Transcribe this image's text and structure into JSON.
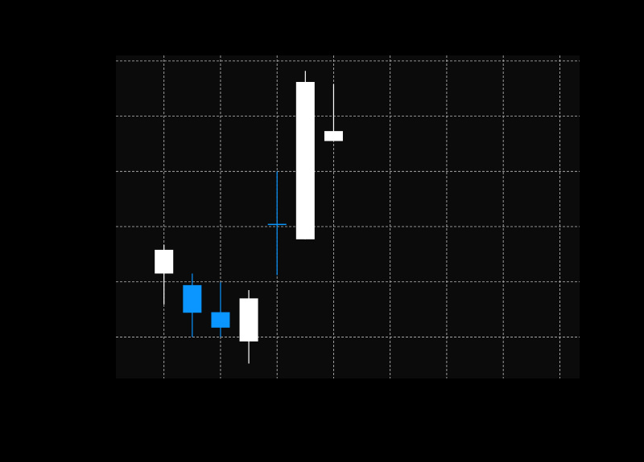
{
  "chart_data": {
    "type": "candlestick",
    "title": "",
    "xlabel": "",
    "ylabel": "",
    "grid": true,
    "legend": "none",
    "colors": {
      "figure_background": "#000000",
      "plot_background": "#0b0b0b",
      "grid": "#bdbdbd",
      "up": "#ffffff",
      "down": "#0a95ff"
    },
    "xlim": [
      0,
      8.2
    ],
    "ylim": [
      0,
      5.85
    ],
    "x_gridlines": [
      0.85,
      1.85,
      2.85,
      3.85,
      4.85,
      5.85,
      6.85,
      7.85
    ],
    "y_gridlines": [
      0.75,
      1.75,
      2.75,
      3.75,
      4.75,
      5.75
    ],
    "candles": [
      {
        "x": 0.85,
        "open": 1.9,
        "close": 2.33,
        "high": 2.42,
        "low": 1.34
      },
      {
        "x": 1.35,
        "open": 1.69,
        "close": 1.19,
        "high": 1.9,
        "low": 0.75
      },
      {
        "x": 1.85,
        "open": 1.2,
        "close": 0.92,
        "high": 1.74,
        "low": 0.75
      },
      {
        "x": 2.35,
        "open": 0.67,
        "close": 1.45,
        "high": 1.6,
        "low": 0.27
      },
      {
        "x": 2.85,
        "open": 2.8,
        "close": 2.78,
        "high": 3.75,
        "low": 1.87
      },
      {
        "x": 3.35,
        "open": 2.52,
        "close": 5.37,
        "high": 5.57,
        "low": 2.52
      },
      {
        "x": 3.85,
        "open": 4.3,
        "close": 4.48,
        "high": 5.33,
        "low": 4.3
      }
    ]
  }
}
